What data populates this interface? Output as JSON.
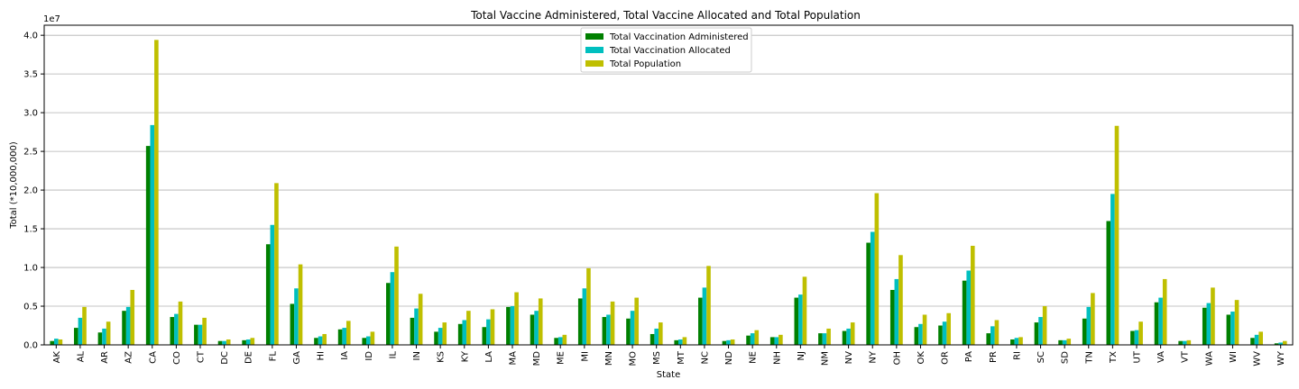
{
  "chart_data": {
    "type": "bar",
    "title": "Total Vaccine Administered, Total Vaccine Allocated and Total Population",
    "xlabel": "State",
    "ylabel": "Total (*10,000,000)",
    "y_scale_label": "1e7",
    "ylim": [
      0,
      41300000
    ],
    "yticks": [
      "0.0",
      "0.5",
      "1.0",
      "1.5",
      "2.0",
      "2.5",
      "3.0",
      "3.5",
      "4.0"
    ],
    "grid": "horizontal",
    "legend_position": "top-center",
    "categories": [
      "AK",
      "AL",
      "AR",
      "AZ",
      "CA",
      "CO",
      "CT",
      "DC",
      "DE",
      "FL",
      "GA",
      "HI",
      "IA",
      "ID",
      "IL",
      "IN",
      "KS",
      "KY",
      "LA",
      "MA",
      "MD",
      "ME",
      "MI",
      "MN",
      "MO",
      "MS",
      "MT",
      "NC",
      "ND",
      "NE",
      "NH",
      "NJ",
      "NM",
      "NV",
      "NY",
      "OH",
      "OK",
      "OR",
      "PA",
      "PR",
      "RI",
      "SC",
      "SD",
      "TN",
      "TX",
      "UT",
      "VA",
      "VT",
      "WA",
      "WI",
      "WV",
      "WY"
    ],
    "series": [
      {
        "name": "Total Vaccination Administered",
        "color": "#008000",
        "values": [
          500000,
          2200000,
          1600000,
          4400000,
          25700000,
          3600000,
          2600000,
          500000,
          600000,
          13000000,
          5300000,
          900000,
          2000000,
          900000,
          8000000,
          3500000,
          1700000,
          2700000,
          2300000,
          4900000,
          3900000,
          900000,
          6000000,
          3600000,
          3400000,
          1400000,
          600000,
          6100000,
          500000,
          1200000,
          1000000,
          6100000,
          1500000,
          1800000,
          13200000,
          7100000,
          2300000,
          2500000,
          8300000,
          1500000,
          700000,
          2900000,
          600000,
          3400000,
          16000000,
          1800000,
          5500000,
          500000,
          4800000,
          3900000,
          900000,
          200000
        ]
      },
      {
        "name": "Total Vaccination Allocated",
        "color": "#00bfbf",
        "values": [
          800000,
          3500000,
          2100000,
          4900000,
          28400000,
          4000000,
          2600000,
          500000,
          700000,
          15500000,
          7300000,
          1100000,
          2200000,
          1100000,
          9400000,
          4700000,
          2200000,
          3200000,
          3300000,
          5000000,
          4400000,
          1000000,
          7300000,
          3900000,
          4400000,
          2100000,
          700000,
          7400000,
          600000,
          1500000,
          1000000,
          6500000,
          1500000,
          2100000,
          14600000,
          8500000,
          2700000,
          3000000,
          9600000,
          2400000,
          900000,
          3600000,
          600000,
          4900000,
          19500000,
          1900000,
          6100000,
          500000,
          5400000,
          4300000,
          1300000,
          300000
        ]
      },
      {
        "name": "Total Population",
        "color": "#bfbf00",
        "values": [
          700000,
          4900000,
          3000000,
          7100000,
          39400000,
          5600000,
          3500000,
          700000,
          900000,
          20900000,
          10400000,
          1400000,
          3100000,
          1700000,
          12700000,
          6600000,
          2900000,
          4400000,
          4600000,
          6800000,
          6000000,
          1300000,
          9900000,
          5600000,
          6100000,
          2900000,
          1000000,
          10200000,
          700000,
          1900000,
          1300000,
          8800000,
          2100000,
          2900000,
          19600000,
          11600000,
          3900000,
          4100000,
          12800000,
          3200000,
          1000000,
          5000000,
          800000,
          6700000,
          28300000,
          3000000,
          8500000,
          600000,
          7400000,
          5800000,
          1700000,
          500000
        ]
      }
    ]
  }
}
